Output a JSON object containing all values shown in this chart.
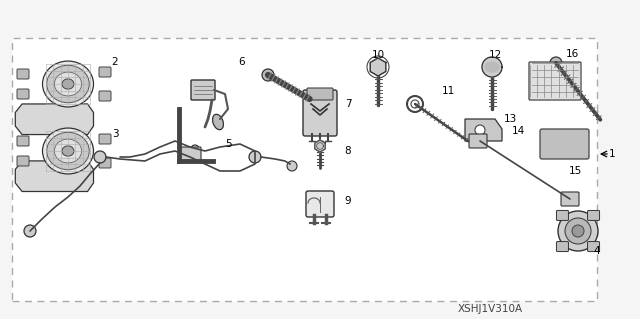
{
  "background_color": "#f5f5f5",
  "border_color": "#999999",
  "diagram_code": "XSHJ1V310A",
  "title_color": "#333333",
  "label_color": "#000000",
  "part_color": "#555555",
  "part_fill": "#cccccc",
  "label_size": 7.5
}
